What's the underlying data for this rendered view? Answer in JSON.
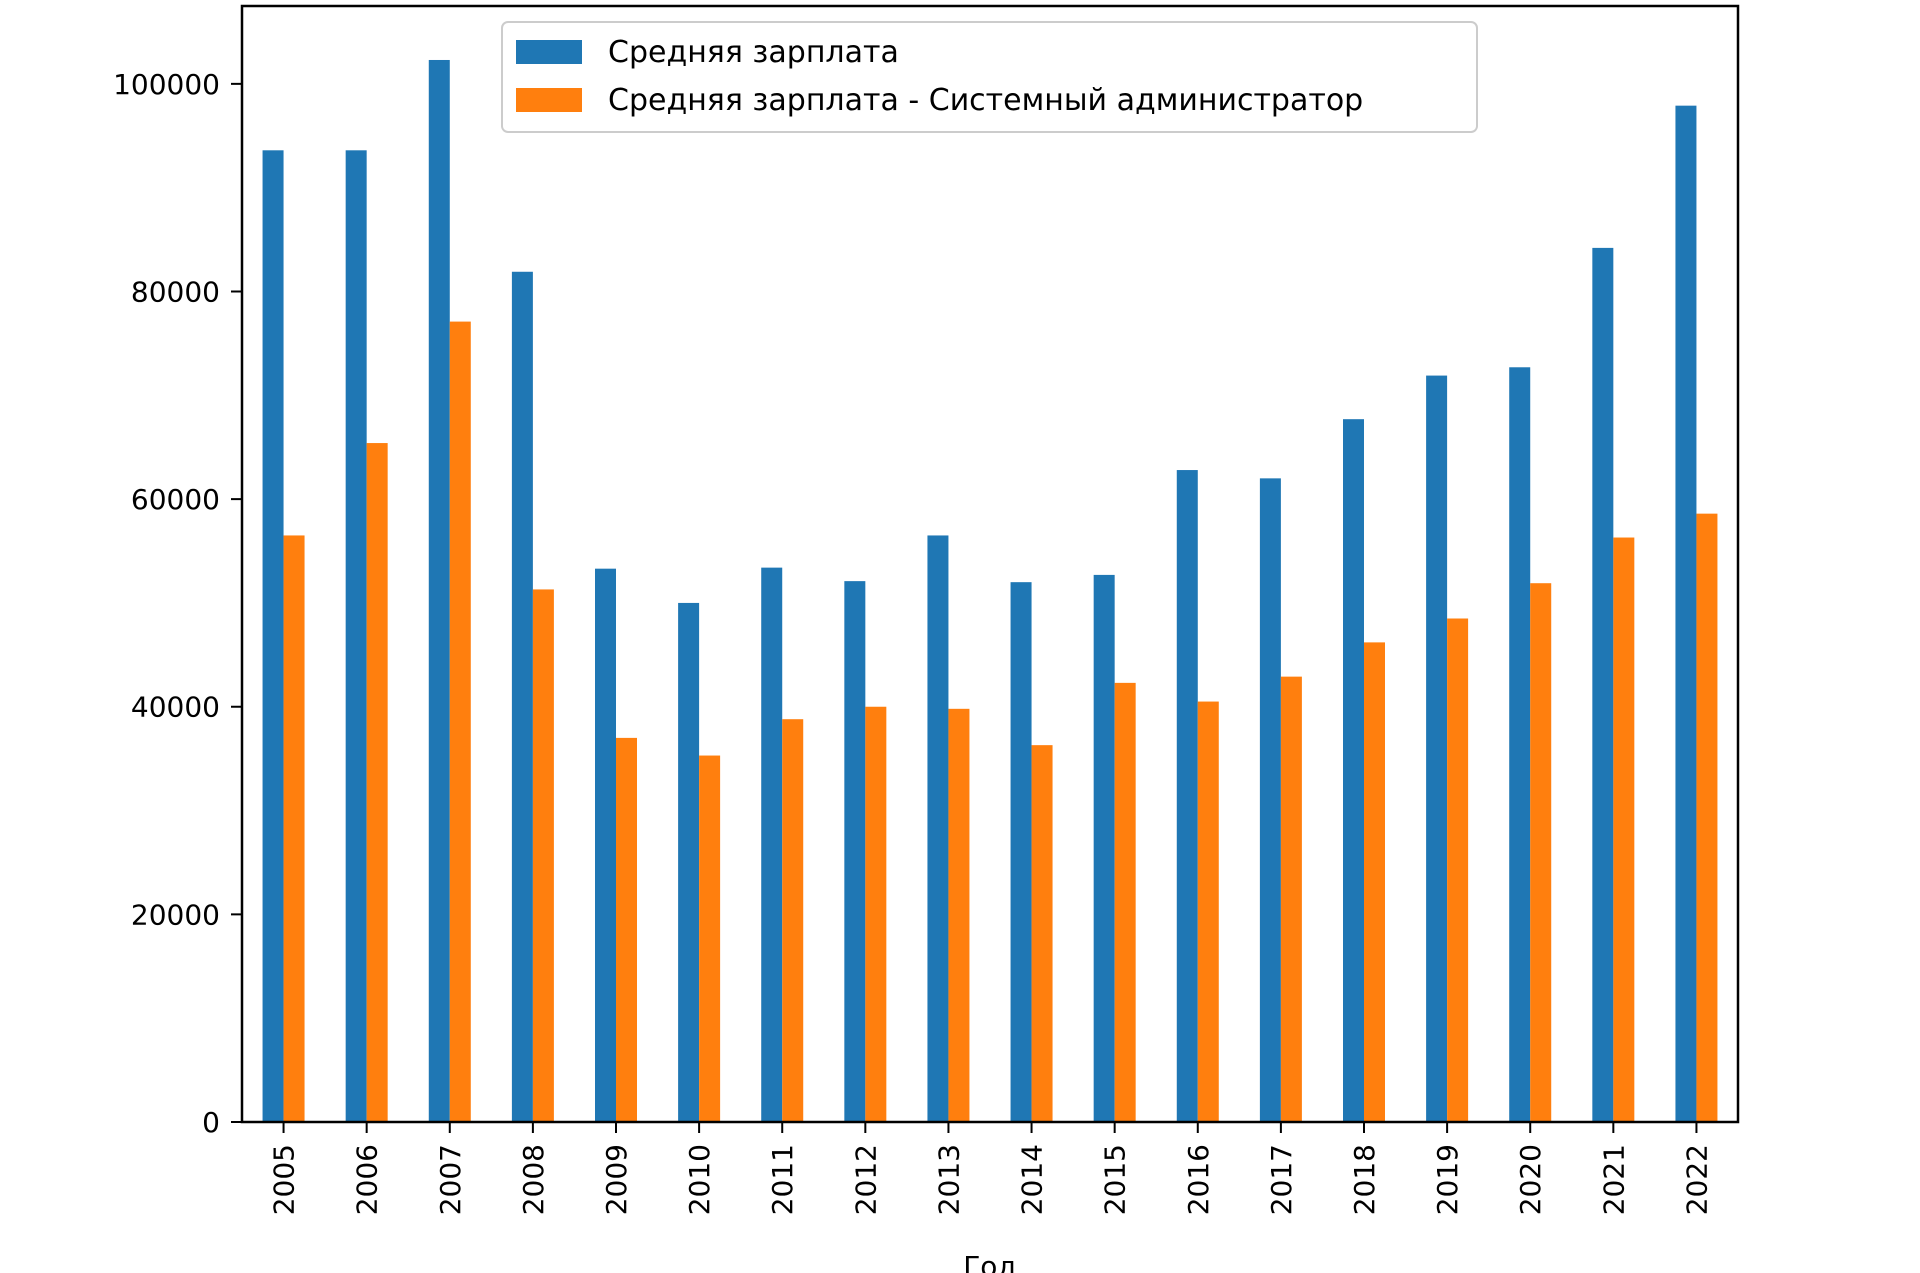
{
  "chart_data": {
    "type": "bar",
    "title": "",
    "xlabel": "Год",
    "ylabel": "",
    "categories": [
      "2005",
      "2006",
      "2007",
      "2008",
      "2009",
      "2010",
      "2011",
      "2012",
      "2013",
      "2014",
      "2015",
      "2016",
      "2017",
      "2018",
      "2019",
      "2020",
      "2021",
      "2022"
    ],
    "series": [
      {
        "name": "Средняя зарплата",
        "color": "#1f77b4",
        "values": [
          93600,
          93600,
          102300,
          81900,
          53300,
          50000,
          53400,
          52100,
          56500,
          52000,
          52700,
          62800,
          62000,
          67700,
          71900,
          72700,
          84200,
          97900
        ]
      },
      {
        "name": "Средняя зарплата - Системный администратор",
        "color": "#ff7f0e",
        "values": [
          56500,
          65400,
          77100,
          51300,
          37000,
          35300,
          38800,
          40000,
          39800,
          36300,
          42300,
          40500,
          42900,
          46200,
          48500,
          51900,
          56300,
          58600
        ]
      }
    ],
    "yticks": [
      "0",
      "20000",
      "40000",
      "60000",
      "80000",
      "100000"
    ],
    "ylim": [
      0,
      107500
    ],
    "grid": false,
    "legend": "top-center"
  }
}
